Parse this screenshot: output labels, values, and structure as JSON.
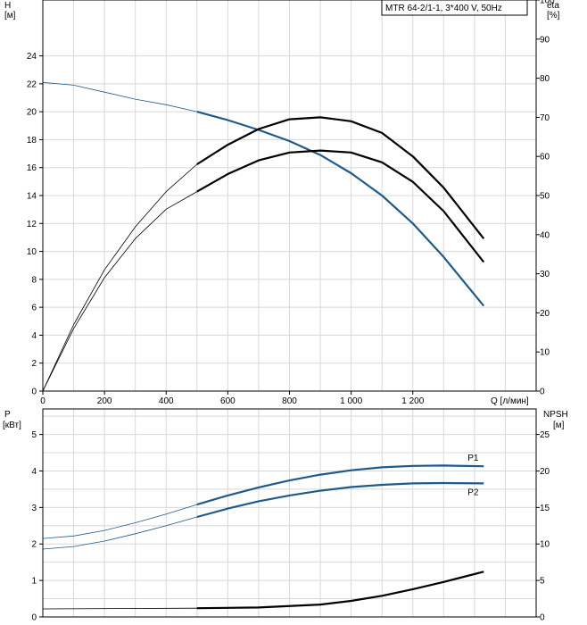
{
  "chart_data": [
    {
      "type": "line",
      "title": "MTR 64-2/1-1, 3*400 V, 50Hz",
      "xlabel": "Q [л/мин]",
      "ylabel": "H",
      "ylabel_unit": "[м]",
      "ylabel_right": "eta",
      "ylabel_right_unit": "[%]",
      "xlim": [
        0,
        1600
      ],
      "ylim": [
        0,
        28
      ],
      "ylim_right": [
        0,
        100
      ],
      "x_ticks": [
        0,
        200,
        400,
        600,
        800,
        1000,
        1200
      ],
      "x_tick_labels": [
        "0",
        "200",
        "400",
        "600",
        "800",
        "1 000",
        "1 200"
      ],
      "y_ticks": [
        0,
        2,
        4,
        6,
        8,
        10,
        12,
        14,
        16,
        18,
        20,
        22,
        24
      ],
      "y_tick_labels": [
        "0",
        "2",
        "4",
        "6",
        "8",
        "10",
        "12",
        "14",
        "16",
        "18",
        "20",
        "22",
        "24"
      ],
      "y_right_ticks": [
        0,
        10,
        20,
        30,
        40,
        50,
        60,
        70,
        80,
        90,
        100
      ],
      "y_right_tick_labels": [
        "0",
        "10",
        "20",
        "30",
        "40",
        "50",
        "60",
        "70",
        "80",
        "90",
        "100"
      ],
      "grid": true,
      "series": [
        {
          "axis": "left",
          "color": "#1f5a8c",
          "x": [
            0,
            100,
            200,
            300,
            400,
            500,
            600,
            700,
            800,
            900,
            1000,
            1100,
            1200,
            1300,
            1430
          ],
          "y": [
            22.1,
            21.9,
            21.4,
            20.9,
            20.5,
            20.0,
            19.4,
            18.7,
            17.9,
            16.9,
            15.6,
            14.0,
            12.0,
            9.6,
            6.1
          ],
          "operating_range": [
            500,
            1430
          ]
        },
        {
          "axis": "right",
          "color": "#000000",
          "x": [
            0,
            100,
            200,
            300,
            400,
            500,
            600,
            700,
            800,
            900,
            1000,
            1100,
            1200,
            1300,
            1430
          ],
          "y": [
            0,
            17,
            31,
            42,
            51,
            58,
            63,
            67,
            69.5,
            70,
            69,
            66,
            60,
            52,
            39
          ],
          "operating_range": [
            500,
            1430
          ]
        },
        {
          "axis": "right",
          "color": "#000000",
          "x": [
            0,
            100,
            200,
            300,
            400,
            500,
            600,
            700,
            800,
            900,
            1000,
            1100,
            1200,
            1300,
            1430
          ],
          "y": [
            0,
            16,
            29,
            39,
            46.5,
            51,
            55.5,
            59,
            61,
            61.5,
            61,
            58.5,
            53.5,
            46,
            33
          ],
          "operating_range": [
            500,
            1430
          ]
        }
      ]
    },
    {
      "type": "line",
      "ylabel": "P",
      "ylabel_unit": "[кВт]",
      "ylabel_right": "NPSH",
      "ylabel_right_unit": "[м]",
      "xlim": [
        0,
        1600
      ],
      "ylim": [
        0,
        5.7
      ],
      "ylim_right": [
        0,
        28.5
      ],
      "y_ticks": [
        0,
        1,
        2,
        3,
        4,
        5
      ],
      "y_tick_labels": [
        "0",
        "1",
        "2",
        "3",
        "4",
        "5"
      ],
      "y_right_ticks": [
        0,
        5,
        10,
        15,
        20,
        25
      ],
      "y_right_tick_labels": [
        "0",
        "5",
        "10",
        "15",
        "20",
        "25"
      ],
      "grid": true,
      "series": [
        {
          "name": "P1",
          "axis": "left",
          "color": "#1f5a8c",
          "x": [
            0,
            100,
            200,
            300,
            400,
            500,
            600,
            700,
            800,
            900,
            1000,
            1100,
            1200,
            1300,
            1430
          ],
          "y": [
            2.15,
            2.22,
            2.37,
            2.58,
            2.82,
            3.08,
            3.33,
            3.55,
            3.74,
            3.9,
            4.02,
            4.1,
            4.14,
            4.15,
            4.13
          ],
          "operating_range": [
            500,
            1430
          ]
        },
        {
          "name": "P2",
          "axis": "left",
          "color": "#1f5a8c",
          "x": [
            0,
            100,
            200,
            300,
            400,
            500,
            600,
            700,
            800,
            900,
            1000,
            1100,
            1200,
            1300,
            1430
          ],
          "y": [
            1.86,
            1.93,
            2.08,
            2.28,
            2.5,
            2.74,
            2.97,
            3.17,
            3.33,
            3.46,
            3.56,
            3.62,
            3.66,
            3.67,
            3.66
          ],
          "operating_range": [
            500,
            1430
          ]
        },
        {
          "axis": "right",
          "color": "#000000",
          "x": [
            0,
            500,
            700,
            900,
            1000,
            1100,
            1200,
            1300,
            1430
          ],
          "y": [
            1.1,
            1.2,
            1.3,
            1.7,
            2.2,
            2.9,
            3.8,
            4.8,
            6.2
          ],
          "operating_range": [
            500,
            1430
          ]
        }
      ]
    }
  ]
}
